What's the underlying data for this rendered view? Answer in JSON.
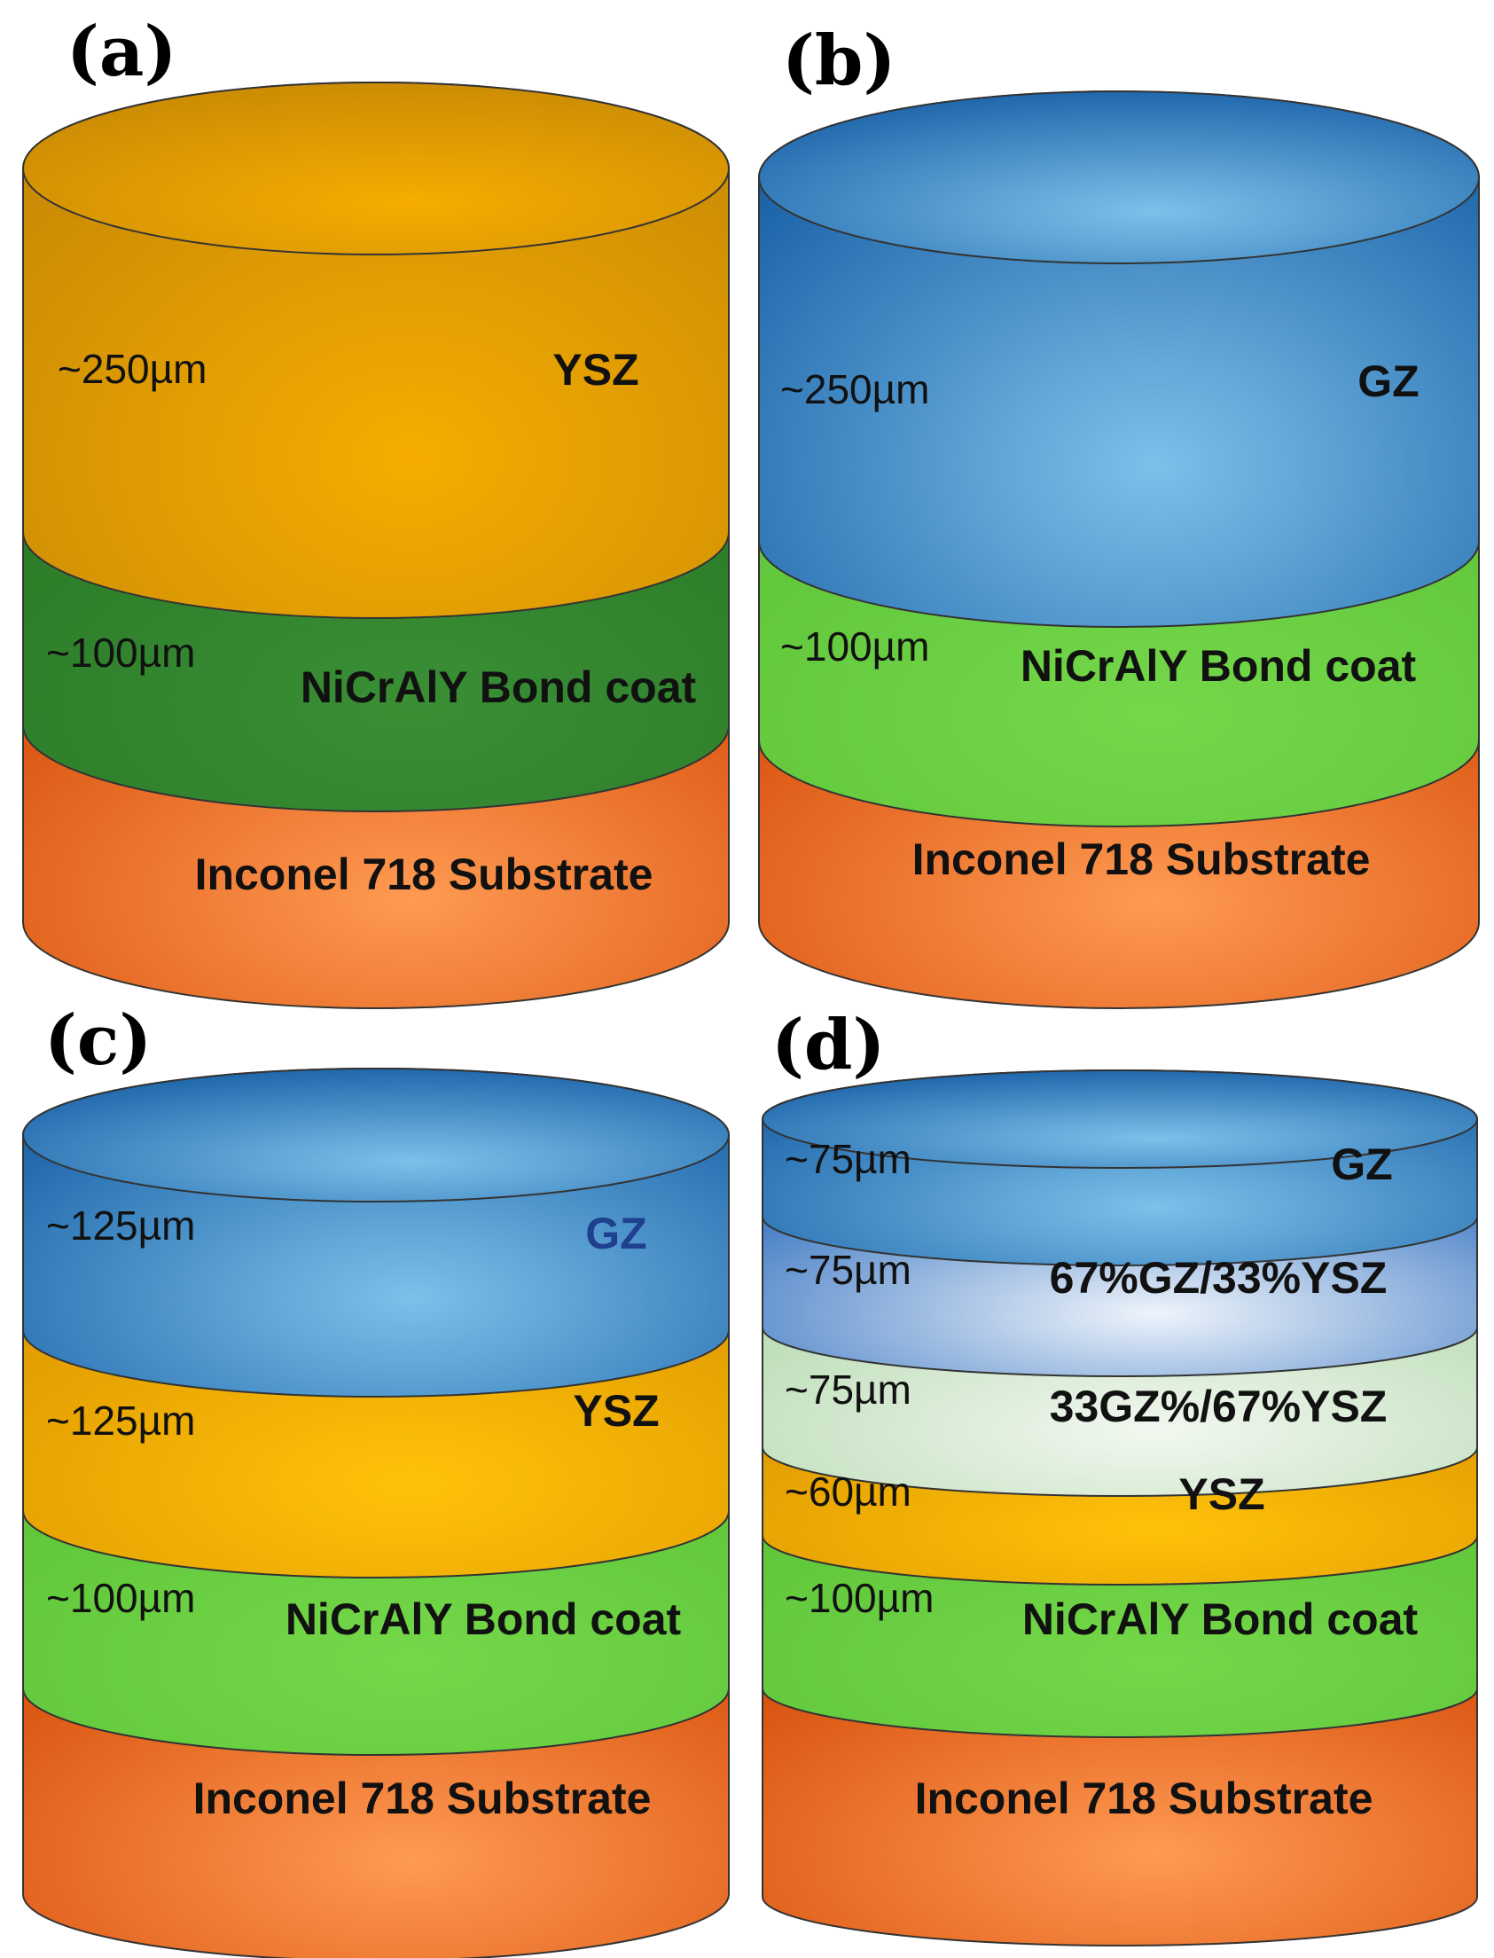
{
  "panels": [
    {
      "label": "(a)",
      "layers": [
        {
          "thickness": "~250µm",
          "name": "YSZ",
          "fill": "ysz"
        },
        {
          "thickness": "~100µm",
          "name": "NiCrAlY Bond coat",
          "fill": "bond_dark"
        },
        {
          "thickness": "",
          "name": "Inconel 718 Substrate",
          "fill": "substrate"
        }
      ]
    },
    {
      "label": "(b)",
      "layers": [
        {
          "thickness": "~250µm",
          "name": "GZ",
          "fill": "gz"
        },
        {
          "thickness": "~100µm",
          "name": "NiCrAlY Bond coat",
          "fill": "bond"
        },
        {
          "thickness": "",
          "name": "Inconel 718 Substrate",
          "fill": "substrate"
        }
      ]
    },
    {
      "label": "(c)",
      "layers": [
        {
          "thickness": "~125µm",
          "name": "GZ",
          "fill": "gz",
          "name_color": "#1f3f8f"
        },
        {
          "thickness": "~125µm",
          "name": "YSZ",
          "fill": "ysz_bright"
        },
        {
          "thickness": "~100µm",
          "name": "NiCrAlY Bond coat",
          "fill": "bond"
        },
        {
          "thickness": "",
          "name": "Inconel 718 Substrate",
          "fill": "substrate"
        }
      ]
    },
    {
      "label": "(d)",
      "layers": [
        {
          "thickness": "~75µm",
          "name": "GZ",
          "fill": "gz"
        },
        {
          "thickness": "~75µm",
          "name": "67%GZ/33%YSZ",
          "fill": "mix1"
        },
        {
          "thickness": "~75µm",
          "name": "33GZ%/67%YSZ",
          "fill": "mix2"
        },
        {
          "thickness": "~60µm",
          "name": "YSZ",
          "fill": "ysz_bright"
        },
        {
          "thickness": "~100µm",
          "name": "NiCrAlY Bond coat",
          "fill": "bond"
        },
        {
          "thickness": "",
          "name": "Inconel 718 Substrate",
          "fill": "substrate"
        }
      ]
    }
  ],
  "colors": {
    "ysz": [
      "#c98a05",
      "#f5ad00"
    ],
    "ysz_bright": [
      "#e09a00",
      "#ffc20a"
    ],
    "gz": [
      "#1a62a8",
      "#7cc1ea"
    ],
    "bond_dark": [
      "#2b7a28",
      "#3a8f35"
    ],
    "bond": [
      "#5fc53a",
      "#74d849"
    ],
    "substrate": [
      "#d9530f",
      "#ff9a52"
    ],
    "mix1": [
      "#3a76c2",
      "#eef4fb"
    ],
    "mix2": [
      "#b9dbb4",
      "#f2f8f0"
    ],
    "outline": "#333333"
  }
}
